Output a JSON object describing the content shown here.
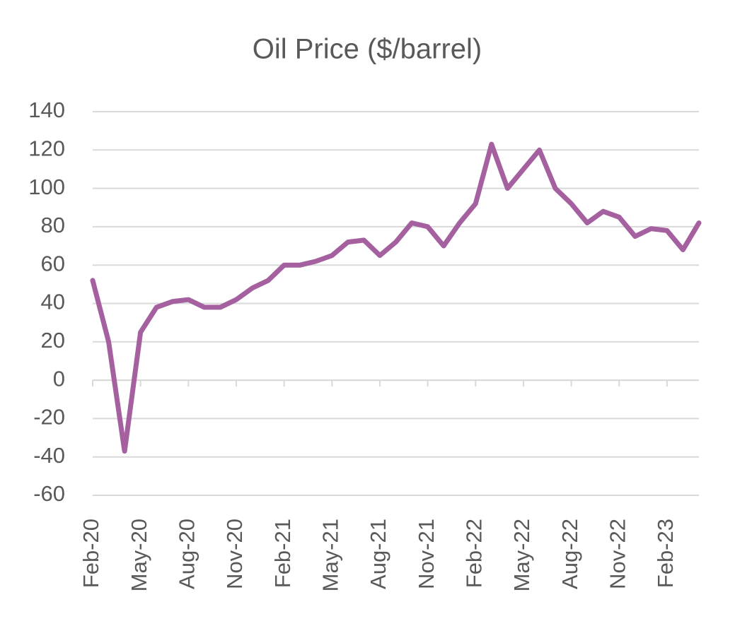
{
  "chart_data": {
    "type": "line",
    "title": "Oil Price ($/barrel)",
    "x": [
      "2020-02",
      "2020-03",
      "2020-04",
      "2020-05",
      "2020-06",
      "2020-07",
      "2020-08",
      "2020-09",
      "2020-10",
      "2020-11",
      "2020-12",
      "2021-01",
      "2021-02",
      "2021-03",
      "2021-04",
      "2021-05",
      "2021-06",
      "2021-07",
      "2021-08",
      "2021-09",
      "2021-10",
      "2021-11",
      "2021-12",
      "2022-01",
      "2022-02",
      "2022-03",
      "2022-04",
      "2022-05",
      "2022-06",
      "2022-07",
      "2022-08",
      "2022-09",
      "2022-10",
      "2022-11",
      "2022-12",
      "2023-01",
      "2023-02",
      "2023-03",
      "2023-04"
    ],
    "series": [
      {
        "name": "Oil Price",
        "color": "#a4609f",
        "values": [
          52,
          20,
          -37,
          25,
          38,
          41,
          42,
          38,
          38,
          42,
          48,
          52,
          60,
          60,
          62,
          65,
          72,
          73,
          65,
          72,
          82,
          80,
          70,
          82,
          92,
          123,
          100,
          110,
          120,
          100,
          92,
          82,
          88,
          85,
          75,
          79,
          78,
          68,
          82
        ]
      }
    ],
    "xlim": [
      "2020-02",
      "2023-04"
    ],
    "xticks": [
      {
        "value": "2020-02",
        "label": "Feb-20"
      },
      {
        "value": "2020-05",
        "label": "May-20"
      },
      {
        "value": "2020-08",
        "label": "Aug-20"
      },
      {
        "value": "2020-11",
        "label": "Nov-20"
      },
      {
        "value": "2021-02",
        "label": "Feb-21"
      },
      {
        "value": "2021-05",
        "label": "May-21"
      },
      {
        "value": "2021-08",
        "label": "Aug-21"
      },
      {
        "value": "2021-11",
        "label": "Nov-21"
      },
      {
        "value": "2022-02",
        "label": "Feb-22"
      },
      {
        "value": "2022-05",
        "label": "May-22"
      },
      {
        "value": "2022-08",
        "label": "Aug-22"
      },
      {
        "value": "2022-11",
        "label": "Nov-22"
      },
      {
        "value": "2023-02",
        "label": "Feb-23"
      }
    ],
    "ylim": [
      -60,
      140
    ],
    "yticks": [
      -60,
      -40,
      -20,
      0,
      20,
      40,
      60,
      80,
      100,
      120,
      140
    ],
    "grid": true
  }
}
